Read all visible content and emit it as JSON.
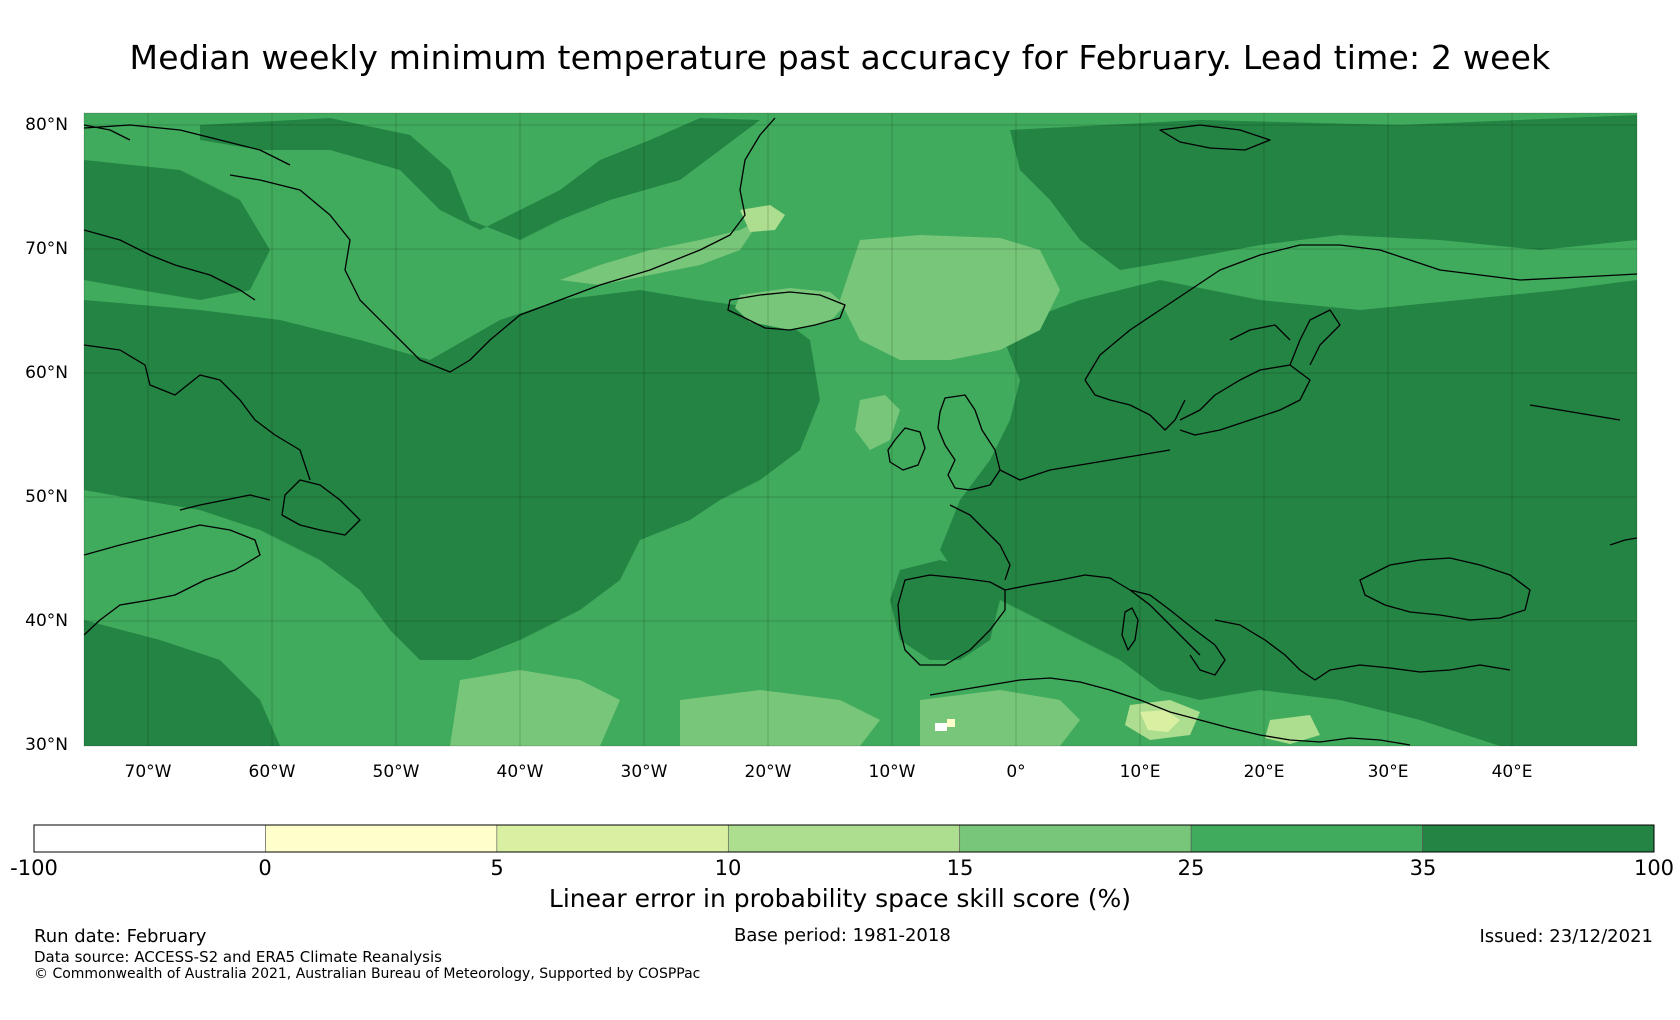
{
  "title": "Median weekly minimum temperature past accuracy for February. Lead time: 2 week",
  "map": {
    "region": "North Atlantic and Europe",
    "lat_labels": [
      "80°N",
      "70°N",
      "60°N",
      "50°N",
      "40°N",
      "30°N"
    ],
    "lon_labels": [
      "70°W",
      "60°W",
      "50°W",
      "40°W",
      "30°W",
      "20°W",
      "10°W",
      "0°",
      "10°E",
      "20°E",
      "30°E",
      "40°E"
    ],
    "lat_range": [
      30,
      81
    ],
    "lon_range": [
      -75,
      50
    ]
  },
  "colorbar": {
    "tick_labels": [
      "-100",
      "0",
      "5",
      "10",
      "15",
      "25",
      "35",
      "100"
    ],
    "colors": [
      "#ffffff",
      "#ffffcc",
      "#d9f0a3",
      "#addd8e",
      "#78c679",
      "#41ab5d",
      "#238443"
    ],
    "label": "Linear error in probability space skill score (%)"
  },
  "footer": {
    "run_date": "Run date: February",
    "base_period": "Base period: 1981-2018",
    "issued": "Issued: 23/12/2021",
    "data_source": "Data source: ACCESS-S2 and ERA5 Climate Reanalysis",
    "copyright": "© Commonwealth of Australia 2021, Australian Bureau of Meteorology, Supported by COSPPac"
  }
}
